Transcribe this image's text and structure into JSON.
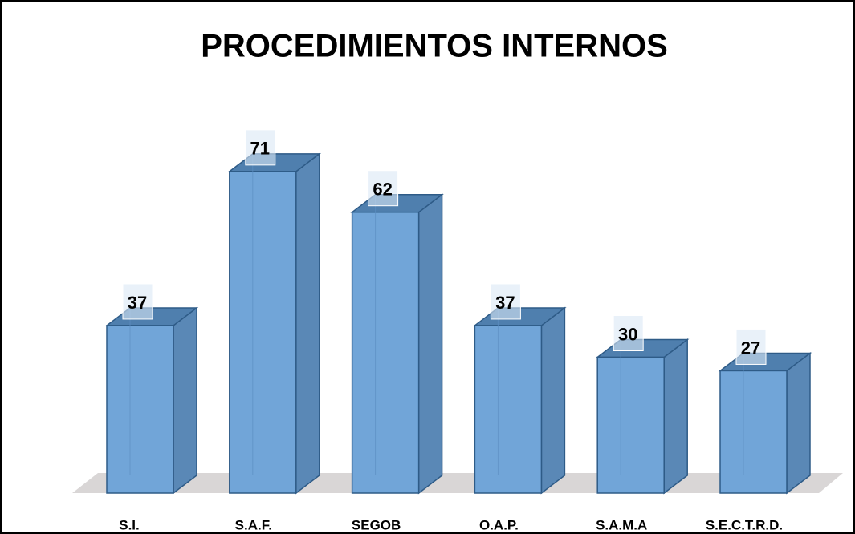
{
  "chart_data": {
    "type": "bar3d",
    "title": "PROCEDIMIENTOS INTERNOS",
    "categories": [
      "S.I.",
      "S.A.F.",
      "SEGOB",
      "O.A.P.",
      "S.A.M.A",
      "S.E.C.T.R.D."
    ],
    "values": [
      37,
      71,
      62,
      37,
      30,
      27
    ],
    "color": "#71a5d8"
  }
}
